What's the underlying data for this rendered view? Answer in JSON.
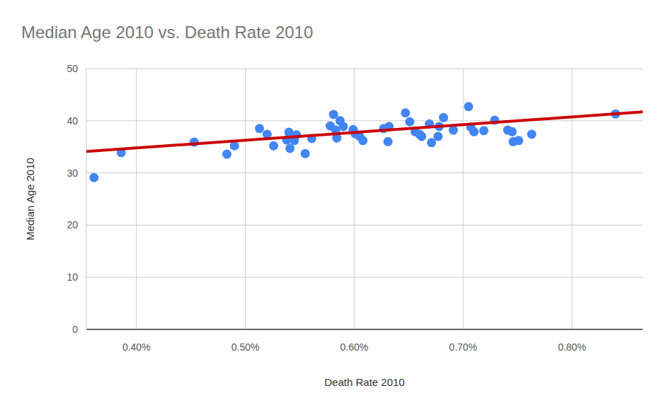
{
  "chart_data": {
    "type": "scatter",
    "title": "Median Age 2010 vs. Death Rate 2010",
    "x_label": "Death Rate 2010",
    "y_label": "Median Age 2010",
    "xlim": [
      0.354,
      0.865
    ],
    "xticks": [
      {
        "value": 0.4,
        "label": "0.40%"
      },
      {
        "value": 0.5,
        "label": "0.50%"
      },
      {
        "value": 0.6,
        "label": "0.60%"
      },
      {
        "value": 0.7,
        "label": "0.70%"
      },
      {
        "value": 0.8,
        "label": "0.80%"
      }
    ],
    "ylim": [
      0,
      50
    ],
    "yticks": [
      0,
      10,
      20,
      30,
      40,
      50
    ],
    "grid": true,
    "series": [
      {
        "type": "scatter",
        "color": "#4285f4",
        "marker": "circle",
        "x": [
          0.361,
          0.386,
          0.453,
          0.483,
          0.49,
          0.513,
          0.52,
          0.526,
          0.538,
          0.54,
          0.541,
          0.542,
          0.545,
          0.547,
          0.555,
          0.561,
          0.578,
          0.581,
          0.583,
          0.584,
          0.587,
          0.59,
          0.599,
          0.601,
          0.605,
          0.608,
          0.627,
          0.632,
          0.631,
          0.647,
          0.651,
          0.656,
          0.66,
          0.662,
          0.669,
          0.671,
          0.677,
          0.678,
          0.682,
          0.691,
          0.705,
          0.707,
          0.71,
          0.719,
          0.729,
          0.741,
          0.745,
          0.746,
          0.751,
          0.763,
          0.84
        ],
        "values": [
          29.1,
          33.9,
          35.9,
          33.6,
          35.2,
          38.5,
          37.4,
          35.2,
          36.3,
          37.8,
          34.7,
          37.1,
          36.2,
          37.3,
          33.7,
          36.6,
          39.0,
          41.2,
          38.2,
          36.7,
          40.0,
          38.9,
          38.3,
          37.5,
          37.0,
          36.2,
          38.5,
          38.9,
          36.0,
          41.5,
          39.8,
          37.9,
          37.4,
          37.0,
          39.4,
          35.8,
          37.0,
          38.9,
          40.6,
          38.2,
          42.7,
          38.8,
          37.9,
          38.1,
          40.1,
          38.2,
          37.9,
          36.0,
          36.2,
          37.4,
          41.3
        ]
      },
      {
        "type": "line",
        "color": "#cc0000",
        "line_style": "solid",
        "x": [
          0.354,
          0.865
        ],
        "values": [
          34.1,
          41.7
        ]
      }
    ]
  }
}
